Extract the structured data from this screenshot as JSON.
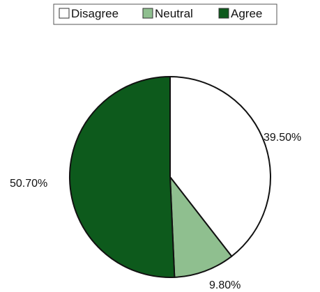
{
  "chart_data": {
    "type": "pie",
    "categories": [
      "Disagree",
      "Neutral",
      "Agree"
    ],
    "values": [
      39.5,
      9.8,
      50.7
    ],
    "value_labels": [
      "39.50%",
      "9.80%",
      "50.70%"
    ],
    "colors": [
      "#ffffff",
      "#8fbf8f",
      "#0d5a1c"
    ],
    "start_angle_deg": 0,
    "direction": "clockwise",
    "legend": "top-center",
    "title": "",
    "outline_color": "#111111"
  }
}
